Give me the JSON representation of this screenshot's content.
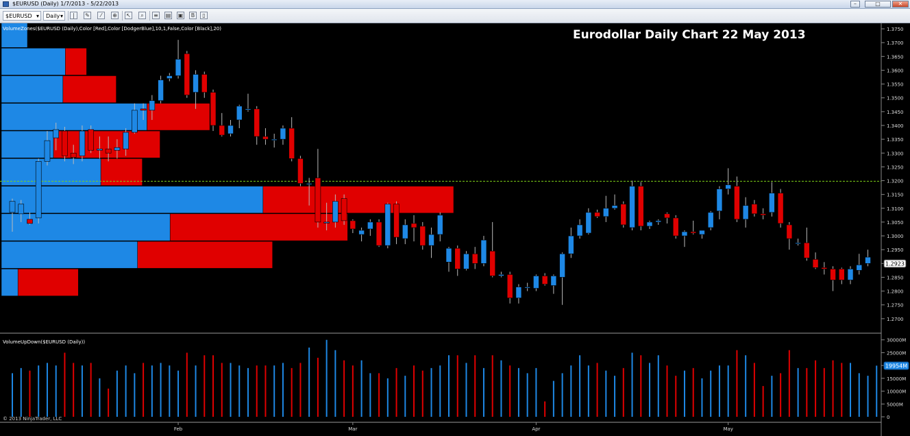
{
  "window": {
    "title": "$EURUSD (Daily)  1/7/2013 - 5/22/2013"
  },
  "toolbar": {
    "instrument": "$EURUSD",
    "period": "Daily",
    "icons": [
      "bar-type-icon",
      "pencil-icon",
      "draw-tool-icon",
      "zoom-icon",
      "zoom-in-icon",
      "strategy-icon",
      "indicator-icon",
      "chart-properties-icon",
      "bar-spacing-icon",
      "data-box-icon"
    ]
  },
  "chart_data": [
    {
      "type": "candlestick",
      "title": "Eurodollar Daily Chart 22 May 2013",
      "indicator_label": "VolumeZones($EURUSD (Daily),Color [Red],Color [DodgerBlue],10,1,False,Color [Black],20)",
      "ylim": [
        1.265,
        1.377
      ],
      "yticks": [
        "1.3750",
        "1.3700",
        "1.3650",
        "1.3600",
        "1.3550",
        "1.3500",
        "1.3450",
        "1.3400",
        "1.3350",
        "1.3300",
        "1.3250",
        "1.3200",
        "1.3150",
        "1.3100",
        "1.3050",
        "1.3000",
        "1.2950",
        "1.2900",
        "1.2850",
        "1.2800",
        "1.2750",
        "1.2700"
      ],
      "last_price": "1.2923",
      "reference_line": 1.3198,
      "colors": {
        "up": "#1e88e5",
        "down": "#e00000",
        "ref_line": "#7fd31a",
        "background": "#000000"
      },
      "candles": [
        {
          "o": 1.3085,
          "h": 1.3135,
          "l": 1.3015,
          "c": 1.3125
        },
        {
          "o": 1.308,
          "h": 1.313,
          "l": 1.305,
          "c": 1.3115
        },
        {
          "o": 1.306,
          "h": 1.3085,
          "l": 1.304,
          "c": 1.3045
        },
        {
          "o": 1.3065,
          "h": 1.328,
          "l": 1.3045,
          "c": 1.327
        },
        {
          "o": 1.327,
          "h": 1.338,
          "l": 1.3255,
          "c": 1.3345
        },
        {
          "o": 1.3355,
          "h": 1.341,
          "l": 1.331,
          "c": 1.3385
        },
        {
          "o": 1.338,
          "h": 1.3395,
          "l": 1.327,
          "c": 1.329
        },
        {
          "o": 1.33,
          "h": 1.333,
          "l": 1.326,
          "c": 1.3285
        },
        {
          "o": 1.329,
          "h": 1.34,
          "l": 1.327,
          "c": 1.338
        },
        {
          "o": 1.3385,
          "h": 1.34,
          "l": 1.33,
          "c": 1.331
        },
        {
          "o": 1.331,
          "h": 1.336,
          "l": 1.328,
          "c": 1.3315
        },
        {
          "o": 1.3315,
          "h": 1.336,
          "l": 1.327,
          "c": 1.33
        },
        {
          "o": 1.331,
          "h": 1.335,
          "l": 1.328,
          "c": 1.332
        },
        {
          "o": 1.3315,
          "h": 1.339,
          "l": 1.329,
          "c": 1.3375
        },
        {
          "o": 1.3375,
          "h": 1.348,
          "l": 1.337,
          "c": 1.3455
        },
        {
          "o": 1.346,
          "h": 1.348,
          "l": 1.342,
          "c": 1.3455
        },
        {
          "o": 1.3455,
          "h": 1.351,
          "l": 1.342,
          "c": 1.349
        },
        {
          "o": 1.349,
          "h": 1.358,
          "l": 1.348,
          "c": 1.3565
        },
        {
          "o": 1.357,
          "h": 1.359,
          "l": 1.356,
          "c": 1.358
        },
        {
          "o": 1.358,
          "h": 1.371,
          "l": 1.357,
          "c": 1.364
        },
        {
          "o": 1.366,
          "h": 1.367,
          "l": 1.35,
          "c": 1.351
        },
        {
          "o": 1.352,
          "h": 1.36,
          "l": 1.346,
          "c": 1.3585
        },
        {
          "o": 1.3585,
          "h": 1.3595,
          "l": 1.35,
          "c": 1.352
        },
        {
          "o": 1.352,
          "h": 1.353,
          "l": 1.338,
          "c": 1.34
        },
        {
          "o": 1.34,
          "h": 1.3445,
          "l": 1.336,
          "c": 1.3365
        },
        {
          "o": 1.337,
          "h": 1.342,
          "l": 1.336,
          "c": 1.34
        },
        {
          "o": 1.342,
          "h": 1.3475,
          "l": 1.339,
          "c": 1.347
        },
        {
          "o": 1.346,
          "h": 1.3515,
          "l": 1.345,
          "c": 1.346
        },
        {
          "o": 1.346,
          "h": 1.347,
          "l": 1.333,
          "c": 1.336
        },
        {
          "o": 1.336,
          "h": 1.339,
          "l": 1.333,
          "c": 1.335
        },
        {
          "o": 1.335,
          "h": 1.337,
          "l": 1.332,
          "c": 1.335
        },
        {
          "o": 1.335,
          "h": 1.34,
          "l": 1.333,
          "c": 1.339
        },
        {
          "o": 1.339,
          "h": 1.343,
          "l": 1.327,
          "c": 1.328
        },
        {
          "o": 1.328,
          "h": 1.329,
          "l": 1.318,
          "c": 1.319
        },
        {
          "o": 1.319,
          "h": 1.321,
          "l": 1.311,
          "c": 1.319
        },
        {
          "o": 1.321,
          "h": 1.3315,
          "l": 1.303,
          "c": 1.305
        },
        {
          "o": 1.305,
          "h": 1.312,
          "l": 1.302,
          "c": 1.305
        },
        {
          "o": 1.305,
          "h": 1.315,
          "l": 1.303,
          "c": 1.3125
        },
        {
          "o": 1.3135,
          "h": 1.315,
          "l": 1.304,
          "c": 1.3055
        },
        {
          "o": 1.3055,
          "h": 1.306,
          "l": 1.301,
          "c": 1.3025
        },
        {
          "o": 1.3005,
          "h": 1.303,
          "l": 1.298,
          "c": 1.302
        },
        {
          "o": 1.3025,
          "h": 1.306,
          "l": 1.3,
          "c": 1.305
        },
        {
          "o": 1.305,
          "h": 1.306,
          "l": 1.296,
          "c": 1.2965
        },
        {
          "o": 1.2965,
          "h": 1.312,
          "l": 1.2955,
          "c": 1.3115
        },
        {
          "o": 1.3115,
          "h": 1.3125,
          "l": 1.297,
          "c": 1.2995
        },
        {
          "o": 1.299,
          "h": 1.306,
          "l": 1.297,
          "c": 1.304
        },
        {
          "o": 1.3045,
          "h": 1.3075,
          "l": 1.298,
          "c": 1.303
        },
        {
          "o": 1.3035,
          "h": 1.305,
          "l": 1.295,
          "c": 1.2965
        },
        {
          "o": 1.2965,
          "h": 1.303,
          "l": 1.292,
          "c": 1.3005
        },
        {
          "o": 1.3005,
          "h": 1.3085,
          "l": 1.298,
          "c": 1.3075
        },
        {
          "o": 1.2905,
          "h": 1.296,
          "l": 1.287,
          "c": 1.2955
        },
        {
          "o": 1.2955,
          "h": 1.2965,
          "l": 1.2855,
          "c": 1.288
        },
        {
          "o": 1.288,
          "h": 1.2945,
          "l": 1.2875,
          "c": 1.2935
        },
        {
          "o": 1.2935,
          "h": 1.296,
          "l": 1.288,
          "c": 1.29
        },
        {
          "o": 1.29,
          "h": 1.3,
          "l": 1.289,
          "c": 1.2985
        },
        {
          "o": 1.2945,
          "h": 1.305,
          "l": 1.285,
          "c": 1.2855
        },
        {
          "o": 1.2855,
          "h": 1.287,
          "l": 1.285,
          "c": 1.286
        },
        {
          "o": 1.286,
          "h": 1.287,
          "l": 1.2755,
          "c": 1.2775
        },
        {
          "o": 1.2775,
          "h": 1.2825,
          "l": 1.2755,
          "c": 1.2815
        },
        {
          "o": 1.2815,
          "h": 1.283,
          "l": 1.28,
          "c": 1.2815
        },
        {
          "o": 1.281,
          "h": 1.286,
          "l": 1.28,
          "c": 1.2855
        },
        {
          "o": 1.2855,
          "h": 1.2865,
          "l": 1.282,
          "c": 1.2825
        },
        {
          "o": 1.282,
          "h": 1.286,
          "l": 1.279,
          "c": 1.2855
        },
        {
          "o": 1.285,
          "h": 1.294,
          "l": 1.275,
          "c": 1.2935
        },
        {
          "o": 1.2935,
          "h": 1.303,
          "l": 1.292,
          "c": 1.3
        },
        {
          "o": 1.3,
          "h": 1.306,
          "l": 1.299,
          "c": 1.304
        },
        {
          "o": 1.301,
          "h": 1.31,
          "l": 1.3005,
          "c": 1.3085
        },
        {
          "o": 1.3085,
          "h": 1.3095,
          "l": 1.3065,
          "c": 1.307
        },
        {
          "o": 1.307,
          "h": 1.3145,
          "l": 1.305,
          "c": 1.31
        },
        {
          "o": 1.31,
          "h": 1.315,
          "l": 1.3095,
          "c": 1.311
        },
        {
          "o": 1.3115,
          "h": 1.3125,
          "l": 1.303,
          "c": 1.304
        },
        {
          "o": 1.303,
          "h": 1.32,
          "l": 1.302,
          "c": 1.318
        },
        {
          "o": 1.318,
          "h": 1.3195,
          "l": 1.302,
          "c": 1.3035
        },
        {
          "o": 1.3035,
          "h": 1.3055,
          "l": 1.3025,
          "c": 1.305
        },
        {
          "o": 1.305,
          "h": 1.306,
          "l": 1.304,
          "c": 1.3055
        },
        {
          "o": 1.308,
          "h": 1.3085,
          "l": 1.3045,
          "c": 1.3065
        },
        {
          "o": 1.3065,
          "h": 1.3075,
          "l": 1.299,
          "c": 1.3
        },
        {
          "o": 1.3,
          "h": 1.302,
          "l": 1.296,
          "c": 1.3015
        },
        {
          "o": 1.3015,
          "h": 1.3055,
          "l": 1.3005,
          "c": 1.301
        },
        {
          "o": 1.3005,
          "h": 1.302,
          "l": 1.299,
          "c": 1.302
        },
        {
          "o": 1.303,
          "h": 1.309,
          "l": 1.302,
          "c": 1.3085
        },
        {
          "o": 1.309,
          "h": 1.318,
          "l": 1.306,
          "c": 1.317
        },
        {
          "o": 1.317,
          "h": 1.3245,
          "l": 1.315,
          "c": 1.3185
        },
        {
          "o": 1.318,
          "h": 1.3215,
          "l": 1.305,
          "c": 1.306
        },
        {
          "o": 1.306,
          "h": 1.314,
          "l": 1.303,
          "c": 1.311
        },
        {
          "o": 1.3115,
          "h": 1.313,
          "l": 1.307,
          "c": 1.308
        },
        {
          "o": 1.308,
          "h": 1.31,
          "l": 1.306,
          "c": 1.3075
        },
        {
          "o": 1.3085,
          "h": 1.3195,
          "l": 1.307,
          "c": 1.3155
        },
        {
          "o": 1.3155,
          "h": 1.317,
          "l": 1.303,
          "c": 1.3045
        },
        {
          "o": 1.304,
          "h": 1.305,
          "l": 1.295,
          "c": 1.299
        },
        {
          "o": 1.2975,
          "h": 1.299,
          "l": 1.2965,
          "c": 1.2975
        },
        {
          "o": 1.2975,
          "h": 1.303,
          "l": 1.291,
          "c": 1.292
        },
        {
          "o": 1.2915,
          "h": 1.294,
          "l": 1.288,
          "c": 1.2885
        },
        {
          "o": 1.2885,
          "h": 1.2905,
          "l": 1.286,
          "c": 1.288
        },
        {
          "o": 1.288,
          "h": 1.289,
          "l": 1.28,
          "c": 1.284
        },
        {
          "o": 1.288,
          "h": 1.2885,
          "l": 1.2825,
          "c": 1.284
        },
        {
          "o": 1.284,
          "h": 1.289,
          "l": 1.2825,
          "c": 1.288
        },
        {
          "o": 1.2875,
          "h": 1.2935,
          "l": 1.286,
          "c": 1.2895
        },
        {
          "o": 1.29,
          "h": 1.295,
          "l": 1.289,
          "c": 1.2923
        }
      ],
      "volume_profile": [
        {
          "low": 1.368,
          "high": 1.3775,
          "up": 44000,
          "down": 0
        },
        {
          "low": 1.358,
          "high": 1.368,
          "up": 108000,
          "down": 36000
        },
        {
          "low": 1.348,
          "high": 1.358,
          "up": 104000,
          "down": 90000
        },
        {
          "low": 1.338,
          "high": 1.348,
          "up": 246000,
          "down": 106000
        },
        {
          "low": 1.328,
          "high": 1.338,
          "up": 88000,
          "down": 180000
        },
        {
          "low": 1.318,
          "high": 1.328,
          "up": 168000,
          "down": 70000
        },
        {
          "low": 1.308,
          "high": 1.318,
          "up": 442000,
          "down": 322000
        },
        {
          "low": 1.298,
          "high": 1.308,
          "up": 285000,
          "down": 300000
        },
        {
          "low": 1.288,
          "high": 1.298,
          "up": 230000,
          "down": 228000
        },
        {
          "low": 1.278,
          "high": 1.288,
          "up": 28000,
          "down": 102000
        }
      ],
      "xlabels": [
        {
          "label": "Feb",
          "index": 19
        },
        {
          "label": "Mar",
          "index": 39
        },
        {
          "label": "Apr",
          "index": 60
        },
        {
          "label": "May",
          "index": 82
        }
      ]
    },
    {
      "type": "bar",
      "title": "VolumeUpDown($EURUSD (Daily))",
      "ylim": [
        0,
        31000
      ],
      "yticks": [
        "30000M",
        "25000M",
        "20000M",
        "15000M",
        "10000M",
        "5000M",
        "0"
      ],
      "last_value": "19954M",
      "volumes": [
        17000,
        19000,
        18000,
        20000,
        21000,
        20000,
        25000,
        21000,
        20000,
        21000,
        15000,
        11000,
        18000,
        20000,
        17000,
        21000,
        20000,
        21000,
        20000,
        18000,
        25000,
        20000,
        24000,
        24000,
        21000,
        21000,
        20000,
        19000,
        20000,
        20000,
        20000,
        21000,
        19000,
        21000,
        27000,
        23000,
        30000,
        26000,
        22000,
        20000,
        22000,
        17000,
        17000,
        15000,
        19000,
        16000,
        20000,
        18000,
        19000,
        20000,
        24000,
        24000,
        21000,
        24000,
        19000,
        24000,
        22000,
        20000,
        19000,
        17000,
        19000,
        6000,
        14000,
        17000,
        20000,
        24000,
        20000,
        21000,
        18000,
        16000,
        19000,
        25000,
        24000,
        21000,
        24000,
        20000,
        16000,
        18000,
        19000,
        15000,
        18000,
        20000,
        20000,
        26000,
        24000,
        21000,
        12000,
        16000,
        17000,
        26000,
        19000,
        19000,
        22000,
        19000,
        22000,
        21000,
        21000,
        17000,
        16000,
        19954
      ]
    }
  ],
  "copyright": "© 2013 NinjaTrader, LLC"
}
